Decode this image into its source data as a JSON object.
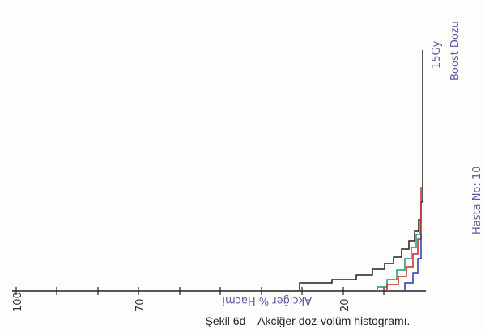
{
  "figure": {
    "annotations": {
      "dose": "15Gy",
      "boost": "Boost Dozu",
      "patient": "Hasta No: 10"
    },
    "axis": {
      "title": "Akciğer % Hacmi",
      "tick_labels": [
        "100",
        "70",
        "20"
      ]
    },
    "caption": "Şekil 6d – Akciğer doz-volüm histogramı."
  }
}
